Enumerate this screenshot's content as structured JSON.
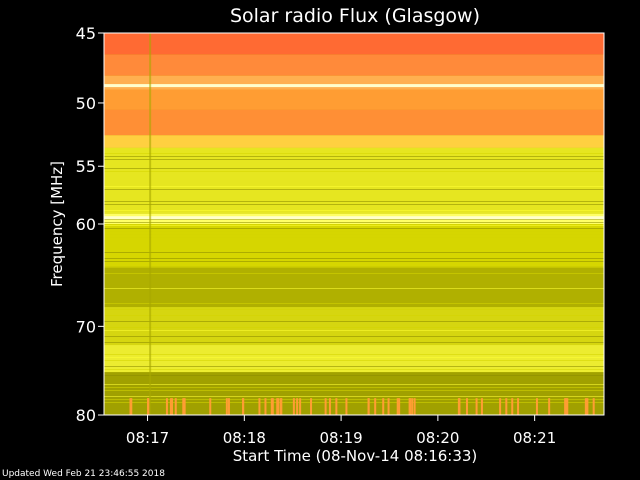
{
  "footer": "Updated Wed Feb 21 23:46:55 2018",
  "chart_data": {
    "type": "heatmap",
    "title": "Solar radio Flux (Glasgow)",
    "xlabel": "Start Time (08-Nov-14 08:16:33)",
    "ylabel": "Frequency [MHz]",
    "x_ticks": [
      "08:17",
      "08:18",
      "08:19",
      "08:20",
      "08:21"
    ],
    "x_tick_times_sec_after_start": [
      27,
      87,
      147,
      207,
      267
    ],
    "x_range_sec_after_start": [
      0,
      310
    ],
    "y_ticks": [
      45,
      50,
      55,
      60,
      70,
      80
    ],
    "ylim": [
      45,
      80
    ],
    "y_scale": "log",
    "y_direction": "down",
    "colormap": [
      "#8a8a00",
      "#d6d600",
      "#ffff33",
      "#ffd040",
      "#ff9d33",
      "#ff6a33"
    ],
    "frequency_bands_mhz": [
      {
        "from": 45.0,
        "to": 46.5,
        "level": "#ff6a33"
      },
      {
        "from": 46.5,
        "to": 48.0,
        "level": "#ff8a3a"
      },
      {
        "from": 48.0,
        "to": 49.0,
        "level": "#ffb050"
      },
      {
        "from": 49.0,
        "to": 50.5,
        "level": "#ff9d33"
      },
      {
        "from": 50.5,
        "to": 52.5,
        "level": "#ff8f35"
      },
      {
        "from": 52.5,
        "to": 53.5,
        "level": "#ffd040"
      },
      {
        "from": 53.5,
        "to": 59.0,
        "level": "#e6e620"
      },
      {
        "from": 59.0,
        "to": 60.0,
        "level": "#ffff66"
      },
      {
        "from": 60.0,
        "to": 64.0,
        "level": "#d6d600"
      },
      {
        "from": 64.0,
        "to": 68.0,
        "level": "#b0b000"
      },
      {
        "from": 68.0,
        "to": 72.0,
        "level": "#d6d610"
      },
      {
        "from": 72.0,
        "to": 75.0,
        "level": "#ecec30"
      },
      {
        "from": 75.0,
        "to": 80.0,
        "level": "#a0a000"
      }
    ]
  }
}
